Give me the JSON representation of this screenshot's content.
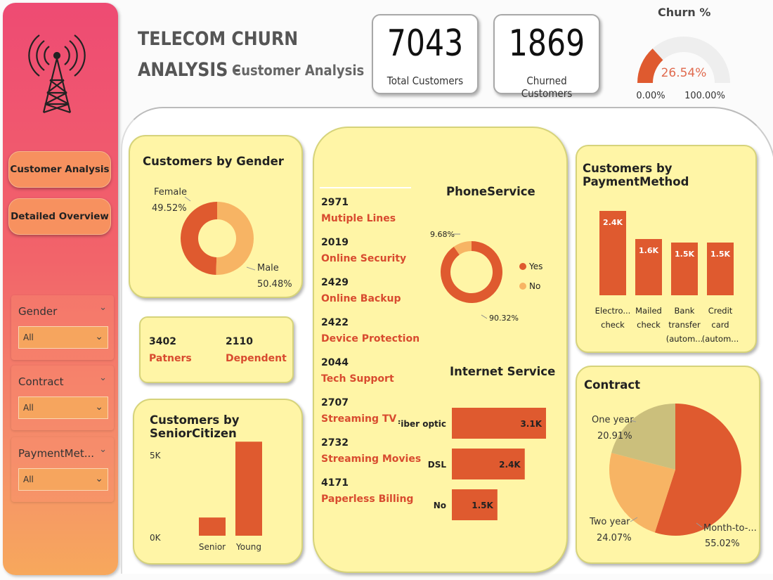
{
  "header": {
    "title_line1": "TELECOM CHURN",
    "title_line2": "ANALYSIS -",
    "subtitle": "Customer Analysis"
  },
  "kpis": {
    "total": {
      "value": "7043",
      "label": "Total Customers"
    },
    "churned": {
      "value": "1869",
      "label": "Churned Customers"
    }
  },
  "gauge": {
    "title": "Churn %",
    "value_label": "26.54%",
    "value": 26.54,
    "min_label": "0.00%",
    "max_label": "100.00%"
  },
  "sidebar": {
    "nav": [
      {
        "label": "Customer Analysis"
      },
      {
        "label": "Detailed Overview"
      }
    ],
    "slicers": [
      {
        "title": "Gender",
        "value": "All"
      },
      {
        "title": "Contract",
        "value": "All"
      },
      {
        "title": "PaymentMet...",
        "value": "All"
      }
    ]
  },
  "gender": {
    "title": "Customers by Gender",
    "female_name": "Female",
    "female_pct": "49.52%",
    "male_name": "Male",
    "male_pct": "50.48%"
  },
  "partners": {
    "partners_value": "3402",
    "partners_label": "Patners",
    "dependent_value": "2110",
    "dependent_label": "Dependent"
  },
  "senior": {
    "title": "Customers by SeniorCitizen",
    "y_top": "5K",
    "y_bottom": "0K",
    "cat_senior": "Senior",
    "cat_young": "Young"
  },
  "services": [
    {
      "value": "2971",
      "label": "Mutiple Lines"
    },
    {
      "value": "2019",
      "label": "Online Security"
    },
    {
      "value": "2429",
      "label": "Online Backup"
    },
    {
      "value": "2422",
      "label": "Device Protection"
    },
    {
      "value": "2044",
      "label": "Tech Support"
    },
    {
      "value": "2707",
      "label": "Streaming TV"
    },
    {
      "value": "2732",
      "label": "Streaming Movies"
    },
    {
      "value": "4171",
      "label": "Paperless Billing"
    }
  ],
  "phone": {
    "title": "PhoneService",
    "no_pct": "9.68%",
    "yes_pct": "90.32%",
    "legend_yes": "Yes",
    "legend_no": "No"
  },
  "internet": {
    "title": "Internet Service",
    "rows": [
      {
        "label": "Fiber optic",
        "value_label": "3.1K"
      },
      {
        "label": "DSL",
        "value_label": "2.4K"
      },
      {
        "label": "No",
        "value_label": "1.5K"
      }
    ]
  },
  "payment": {
    "title": "Customers by PaymentMethod",
    "bars": [
      {
        "value_label": "2.4K",
        "line1": "Electro...",
        "line2": "check"
      },
      {
        "value_label": "1.6K",
        "line1": "Mailed",
        "line2": "check"
      },
      {
        "value_label": "1.5K",
        "line1": "Bank",
        "line2": "transfer",
        "line3": "(autom..."
      },
      {
        "value_label": "1.5K",
        "line1": "Credit",
        "line2": "card",
        "line3": "(autom..."
      }
    ]
  },
  "contract": {
    "title": "Contract",
    "one_year_name": "One year",
    "one_year_pct": "20.91%",
    "two_year_name": "Two year",
    "two_year_pct": "24.07%",
    "m2m_name": "Month-to-...",
    "m2m_pct": "55.02%"
  },
  "colors": {
    "accent": "#df5a2f",
    "light": "#f7b464",
    "olive": "#cbbf7c",
    "card_bg": "#fff5a6"
  },
  "chart_data": [
    {
      "type": "pie",
      "title": "Customers by Gender",
      "categories": [
        "Female",
        "Male"
      ],
      "values": [
        49.52,
        50.48
      ]
    },
    {
      "type": "bar",
      "title": "Customers by SeniorCitizen",
      "categories": [
        "Senior",
        "Young"
      ],
      "values": [
        1142,
        5901
      ],
      "ylim": [
        0,
        6000
      ]
    },
    {
      "type": "pie",
      "title": "PhoneService",
      "categories": [
        "Yes",
        "No"
      ],
      "values": [
        90.32,
        9.68
      ]
    },
    {
      "type": "bar",
      "title": "Internet Service",
      "categories": [
        "Fiber optic",
        "DSL",
        "No"
      ],
      "values": [
        3100,
        2400,
        1500
      ]
    },
    {
      "type": "bar",
      "title": "Customers by PaymentMethod",
      "categories": [
        "Electro... check",
        "Mailed check",
        "Bank transfer (autom...",
        "Credit card (autom..."
      ],
      "values": [
        2400,
        1600,
        1500,
        1500
      ]
    },
    {
      "type": "pie",
      "title": "Contract",
      "categories": [
        "Month-to-...",
        "Two year",
        "One year"
      ],
      "values": [
        55.02,
        24.07,
        20.91
      ]
    }
  ]
}
